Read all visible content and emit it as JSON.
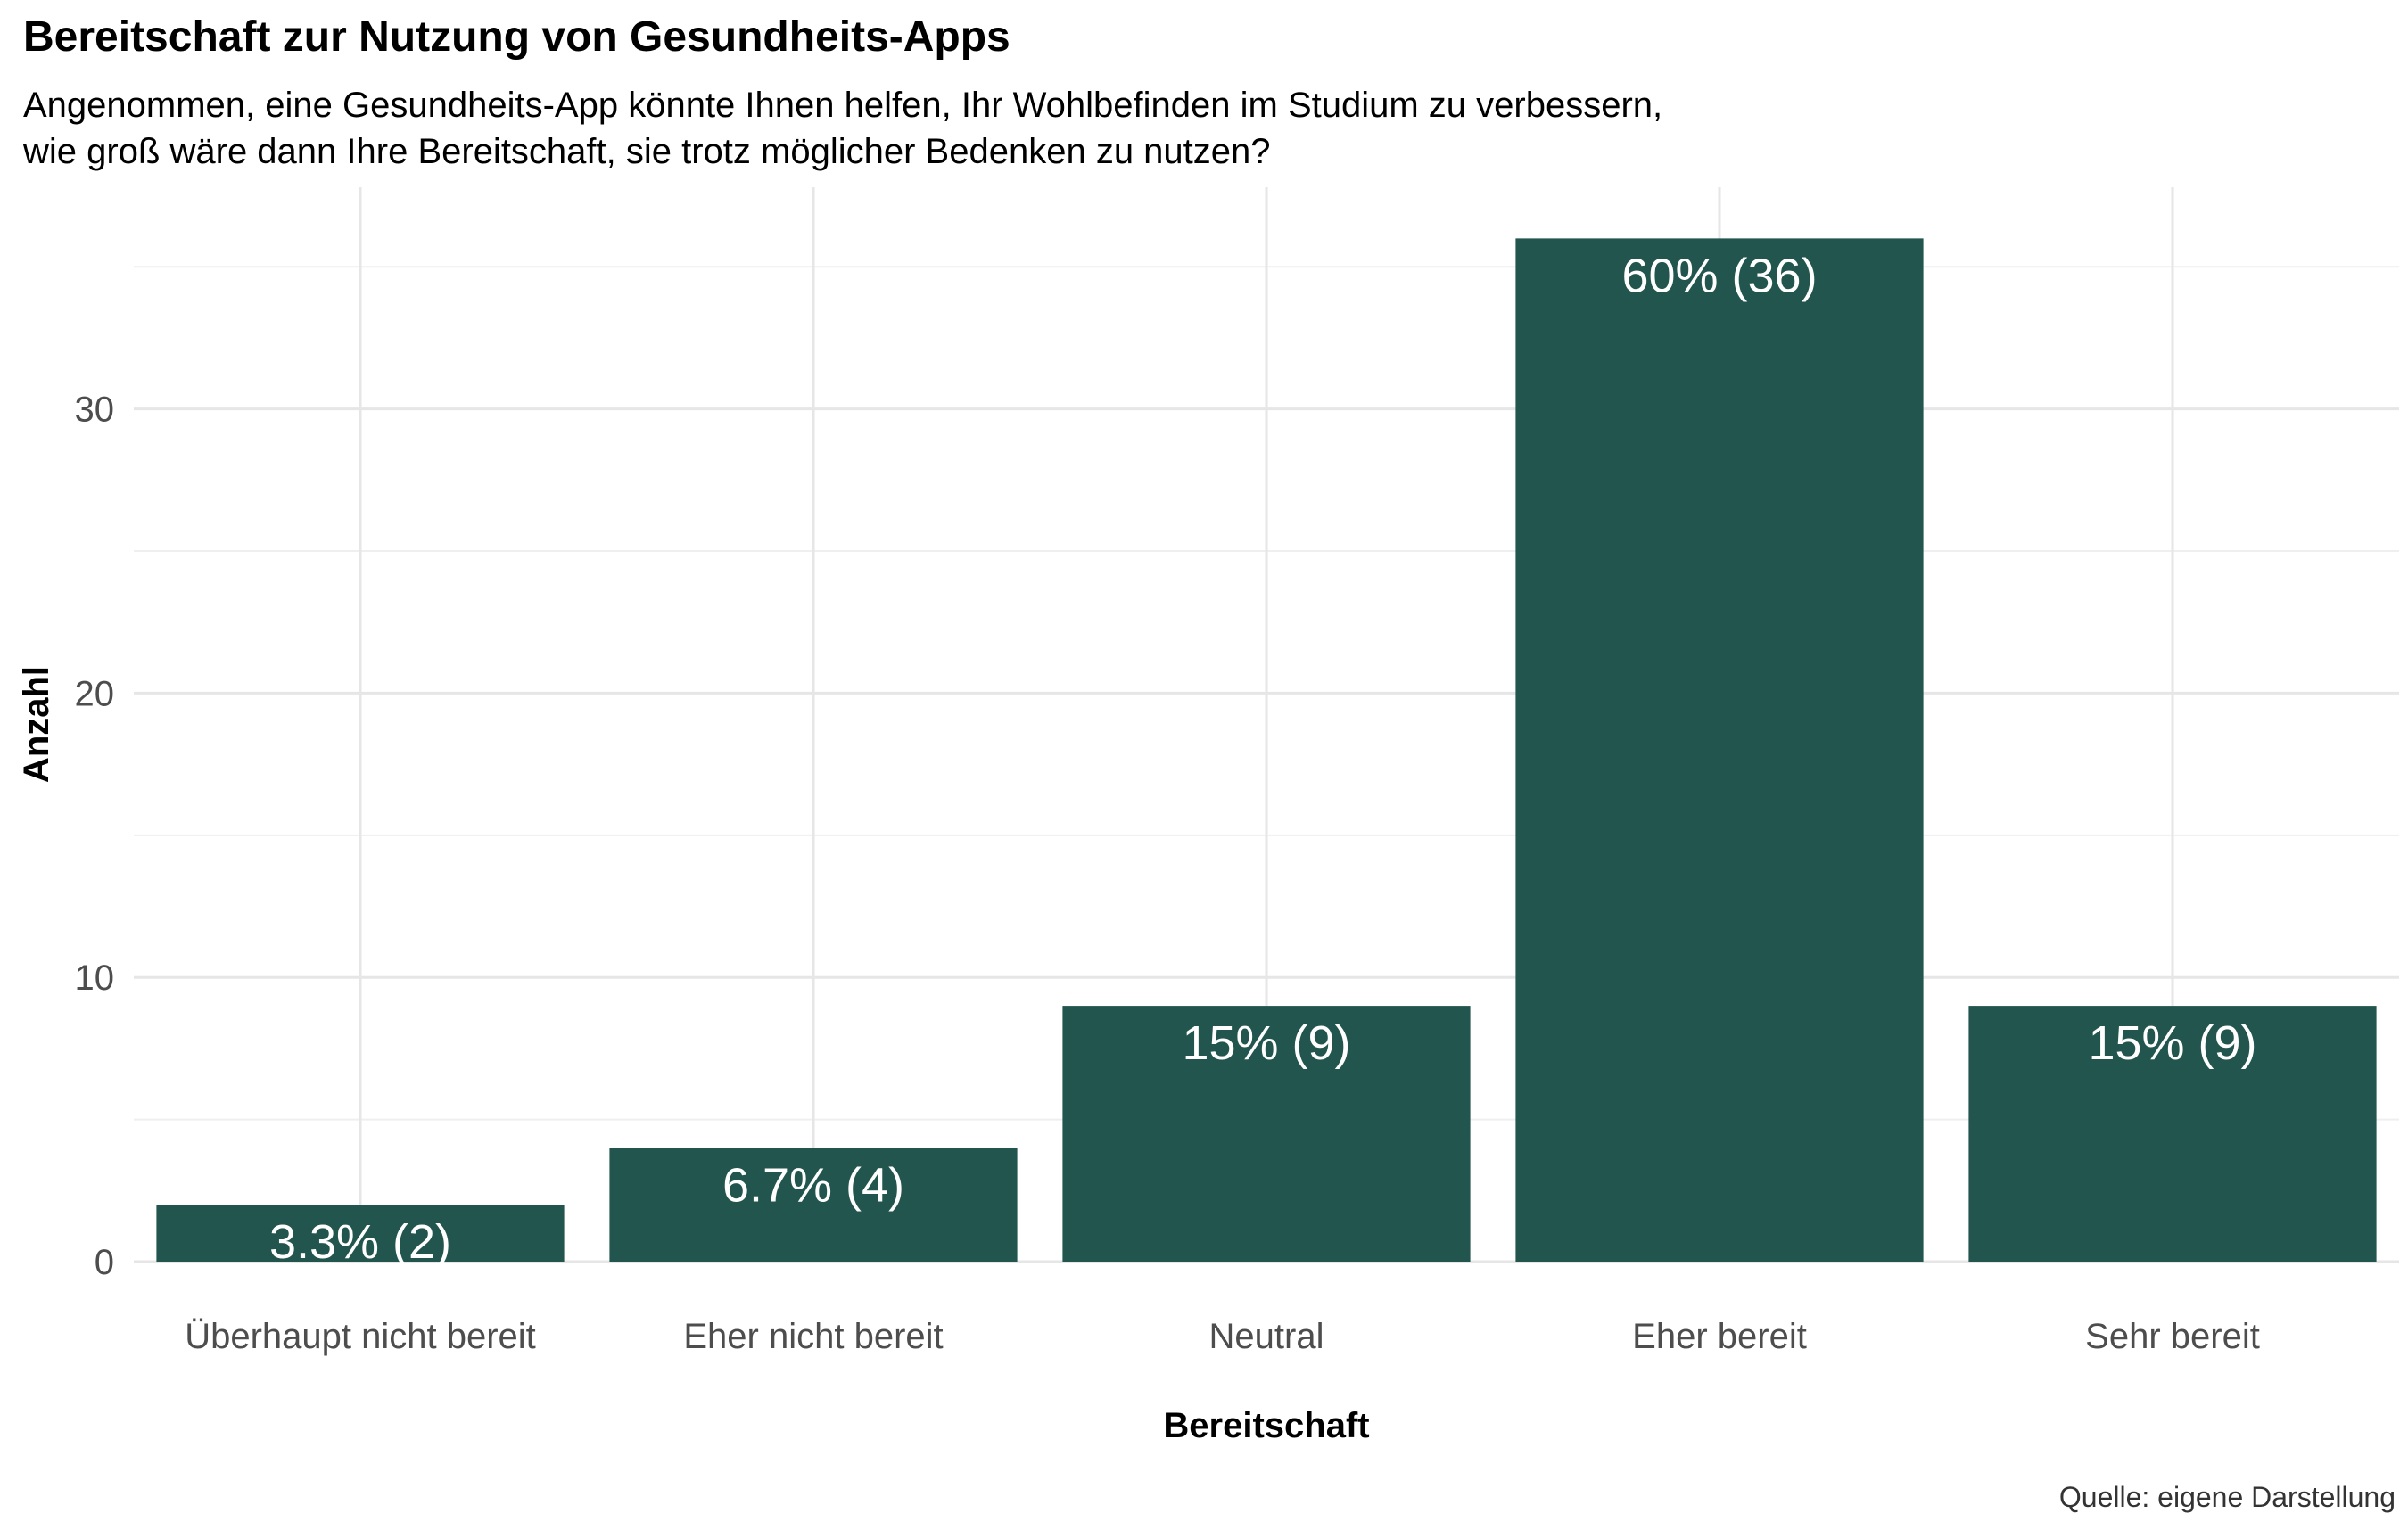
{
  "chart_data": {
    "type": "bar",
    "title": "Bereitschaft zur Nutzung von Gesundheits-Apps",
    "subtitle_lines": [
      "Angenommen, eine Gesundheits-App könnte Ihnen helfen, Ihr Wohlbefinden im Studium zu verbessern,",
      "wie groß wäre dann Ihre Bereitschaft, sie trotz möglicher Bedenken zu nutzen?"
    ],
    "caption": "Quelle: eigene Darstellung",
    "xlabel": "Bereitschaft",
    "ylabel": "Anzahl",
    "categories": [
      "Überhaupt nicht bereit",
      "Eher nicht bereit",
      "Neutral",
      "Eher bereit",
      "Sehr bereit"
    ],
    "values": [
      2,
      4,
      9,
      36,
      9
    ],
    "data_labels": [
      "3.3% (2)",
      "6.7% (4)",
      "15% (9)",
      "60% (36)",
      "15% (9)"
    ],
    "yticks": [
      0,
      10,
      20,
      30
    ],
    "ylim": [
      0,
      37.8
    ],
    "bar_color": "#21554d",
    "grid": true
  }
}
